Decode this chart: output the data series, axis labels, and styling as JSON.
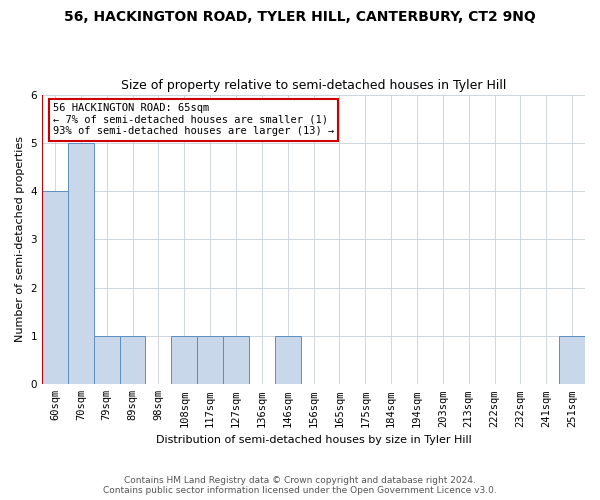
{
  "title": "56, HACKINGTON ROAD, TYLER HILL, CANTERBURY, CT2 9NQ",
  "subtitle": "Size of property relative to semi-detached houses in Tyler Hill",
  "xlabel": "Distribution of semi-detached houses by size in Tyler Hill",
  "ylabel": "Number of semi-detached properties",
  "footer_line1": "Contains HM Land Registry data © Crown copyright and database right 2024.",
  "footer_line2": "Contains public sector information licensed under the Open Government Licence v3.0.",
  "annotation_line1": "56 HACKINGTON ROAD: 65sqm",
  "annotation_line2": "← 7% of semi-detached houses are smaller (1)",
  "annotation_line3": "93% of semi-detached houses are larger (13) →",
  "categories": [
    "60sqm",
    "70sqm",
    "79sqm",
    "89sqm",
    "98sqm",
    "108sqm",
    "117sqm",
    "127sqm",
    "136sqm",
    "146sqm",
    "156sqm",
    "165sqm",
    "175sqm",
    "184sqm",
    "194sqm",
    "203sqm",
    "213sqm",
    "222sqm",
    "232sqm",
    "241sqm",
    "251sqm"
  ],
  "values": [
    4,
    5,
    1,
    1,
    0,
    1,
    1,
    1,
    0,
    1,
    0,
    0,
    0,
    0,
    0,
    0,
    0,
    0,
    0,
    0,
    1
  ],
  "bar_color": "#c8d8ea",
  "bar_edge_color": "#5b8fc0",
  "redline_color": "#cc0000",
  "ylim": [
    0,
    6
  ],
  "yticks": [
    0,
    1,
    2,
    3,
    4,
    5,
    6
  ],
  "background_color": "#ffffff",
  "grid_color": "#c8d0d8",
  "title_fontsize": 10,
  "subtitle_fontsize": 9,
  "ylabel_fontsize": 8,
  "xlabel_fontsize": 8,
  "tick_fontsize": 7.5,
  "annotation_fontsize": 7.5,
  "footer_fontsize": 6.5,
  "annotation_box_color": "#ffffff",
  "annotation_box_edgecolor": "#cc0000"
}
